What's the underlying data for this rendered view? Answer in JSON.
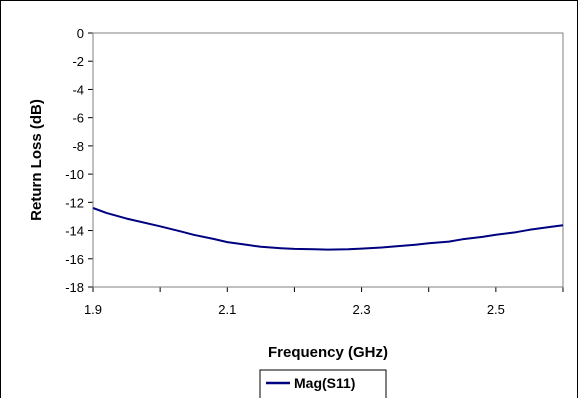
{
  "chart_data": {
    "type": "line",
    "title": "",
    "xlabel": "Frequency (GHz)",
    "ylabel": "Return Loss (dB)",
    "xlim": [
      1.9,
      2.6
    ],
    "ylim": [
      -18,
      0
    ],
    "x_ticks": [
      "1.9",
      "2.1",
      "2.3",
      "2.5"
    ],
    "y_ticks": [
      "0",
      "-2",
      "-4",
      "-6",
      "-8",
      "-10",
      "-12",
      "-14",
      "-16",
      "-18"
    ],
    "grid": false,
    "legend_position": "bottom",
    "series": [
      {
        "name": "Mag(S11)",
        "color": "#000080",
        "x": [
          1.9,
          1.92,
          1.95,
          2.0,
          2.03,
          2.05,
          2.08,
          2.1,
          2.13,
          2.15,
          2.18,
          2.2,
          2.23,
          2.25,
          2.28,
          2.3,
          2.33,
          2.35,
          2.38,
          2.4,
          2.43,
          2.45,
          2.48,
          2.5,
          2.53,
          2.55,
          2.58,
          2.6
        ],
        "y": [
          -12.4,
          -12.75,
          -13.15,
          -13.7,
          -14.05,
          -14.3,
          -14.6,
          -14.82,
          -15.02,
          -15.15,
          -15.25,
          -15.3,
          -15.33,
          -15.35,
          -15.33,
          -15.28,
          -15.2,
          -15.12,
          -15.0,
          -14.9,
          -14.78,
          -14.62,
          -14.45,
          -14.3,
          -14.12,
          -13.95,
          -13.75,
          -13.62
        ]
      }
    ]
  }
}
